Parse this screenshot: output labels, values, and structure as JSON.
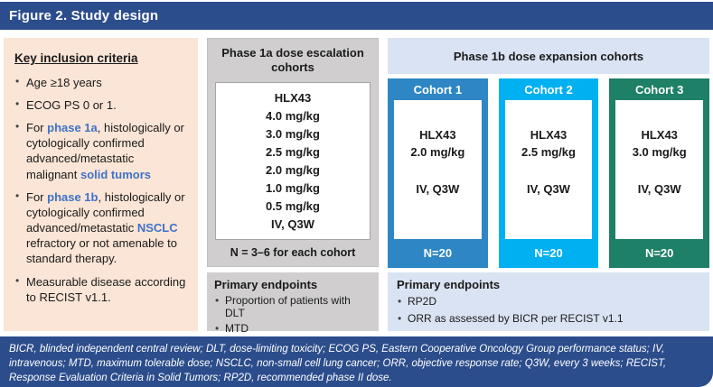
{
  "header": {
    "title": "Figure 2. Study design"
  },
  "colors": {
    "dark_blue": "#2C4D8C",
    "peach_panel": "#FBE5D6",
    "gray_panel": "#D0CECE",
    "light_blue_panel": "#DAE3F3",
    "accent_text": "#3E72C8",
    "cohort1": "#2E86C5",
    "cohort2": "#00B0F0",
    "cohort3": "#1E8066"
  },
  "inclusion_panel": {
    "heading": "Key inclusion criteria",
    "bullet1": "Age ≥18 years",
    "bullet2": "ECOG PS 0 or 1.",
    "bullet3": {
      "s1": "For ",
      "s2": "phase 1a",
      "s3": ", histologically or cytologically confirmed advanced/metastatic malignant ",
      "s4": "solid tumors"
    },
    "bullet4": {
      "s1": "For ",
      "s2": "phase 1b",
      "s3": ", histologically or cytologically confirmed advanced/metastatic ",
      "s4": "NSCLC",
      "s5": " refractory or not amenable to standard therapy."
    },
    "bullet5": "Measurable disease according to RECIST v1.1."
  },
  "phase1a": {
    "heading": "Phase 1a dose escalation cohorts",
    "drug": "HLX43",
    "doses": [
      "4.0 mg/kg",
      "3.0 mg/kg",
      "2.5 mg/kg",
      "2.0 mg/kg",
      "1.0 mg/kg",
      "0.5 mg/kg"
    ],
    "route": "IV, Q3W",
    "note": "N = 3–6 for each cohort",
    "endpoints": {
      "heading": "Primary endpoints",
      "bullet1": "Proportion of patients with DLT",
      "bullet2": "MTD"
    }
  },
  "phase1b": {
    "heading": "Phase 1b dose expansion cohorts",
    "cohorts": [
      {
        "label": "Cohort 1",
        "drug": "HLX43",
        "dose": "2.0 mg/kg",
        "route": "IV, Q3W",
        "n": "N=20",
        "color": "#2E86C5"
      },
      {
        "label": "Cohort 2",
        "drug": "HLX43",
        "dose": "2.5 mg/kg",
        "route": "IV, Q3W",
        "n": "N=20",
        "color": "#00B0F0"
      },
      {
        "label": "Cohort 3",
        "drug": "HLX43",
        "dose": "3.0 mg/kg",
        "route": "IV, Q3W",
        "n": "N=20",
        "color": "#1E8066"
      }
    ],
    "endpoints": {
      "heading": "Primary endpoints",
      "bullet1": "RP2D",
      "bullet2": "ORR as assessed by BICR per RECIST v1.1"
    }
  },
  "footnote": "BICR, blinded independent central review; DLT, dose-limiting toxicity; ECOG PS, Eastern Cooperative Oncology Group performance status; IV, intravenous; MTD, maximum tolerable dose; NSCLC, non-small cell lung cancer; ORR, objective response rate; Q3W, every 3 weeks; RECIST, Response Evaluation Criteria in Solid Tumors; RP2D, recommended phase II dose."
}
